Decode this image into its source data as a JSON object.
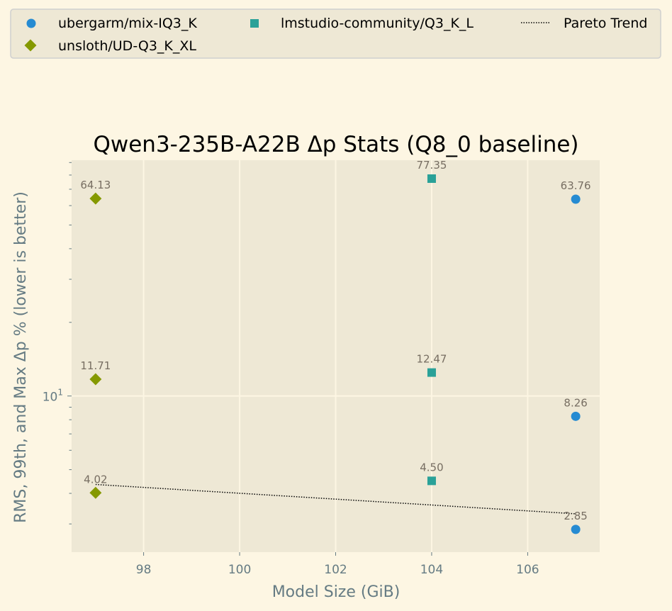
{
  "chart_data": {
    "type": "scatter",
    "title": "Qwen3-235B-A22B Δp Stats (Q8_0 baseline)",
    "xlabel": "Model Size (GiB)",
    "ylabel": "RMS, 99th, and Max Δp % (lower is better)",
    "xlim": [
      96.5,
      107.5
    ],
    "ylim": [
      2.3,
      92
    ],
    "yscale": "log",
    "xticks": [
      "98",
      "100",
      "102",
      "104",
      "106"
    ],
    "yticks": [
      {
        "label": "10",
        "sup": "1",
        "value": 10
      }
    ],
    "grid": true,
    "legend_position": "top",
    "series": [
      {
        "name": "ubergarm/mix-IQ3_K",
        "marker": "circle",
        "color": "#268bd2",
        "points": [
          {
            "x": 107,
            "y": 63.76,
            "label": "63.76"
          },
          {
            "x": 107,
            "y": 8.26,
            "label": "8.26"
          },
          {
            "x": 107,
            "y": 2.85,
            "label": "2.85"
          }
        ]
      },
      {
        "name": "lmstudio-community/Q3_K_L",
        "marker": "square",
        "color": "#2aa198",
        "points": [
          {
            "x": 104,
            "y": 77.35,
            "label": "77.35"
          },
          {
            "x": 104,
            "y": 12.47,
            "label": "12.47"
          },
          {
            "x": 104,
            "y": 4.5,
            "label": "4.50"
          }
        ]
      },
      {
        "name": "unsloth/UD-Q3_K_XL",
        "marker": "diamond",
        "color": "#859900",
        "points": [
          {
            "x": 97,
            "y": 64.13,
            "label": "64.13"
          },
          {
            "x": 97,
            "y": 11.71,
            "label": "11.71"
          },
          {
            "x": 97,
            "y": 4.02,
            "label": "4.02"
          }
        ]
      }
    ],
    "trend": {
      "name": "Pareto Trend",
      "style": "dotted",
      "color": "#000000",
      "points": [
        {
          "x": 97,
          "y": 4.35
        },
        {
          "x": 107,
          "y": 3.3
        }
      ]
    }
  }
}
